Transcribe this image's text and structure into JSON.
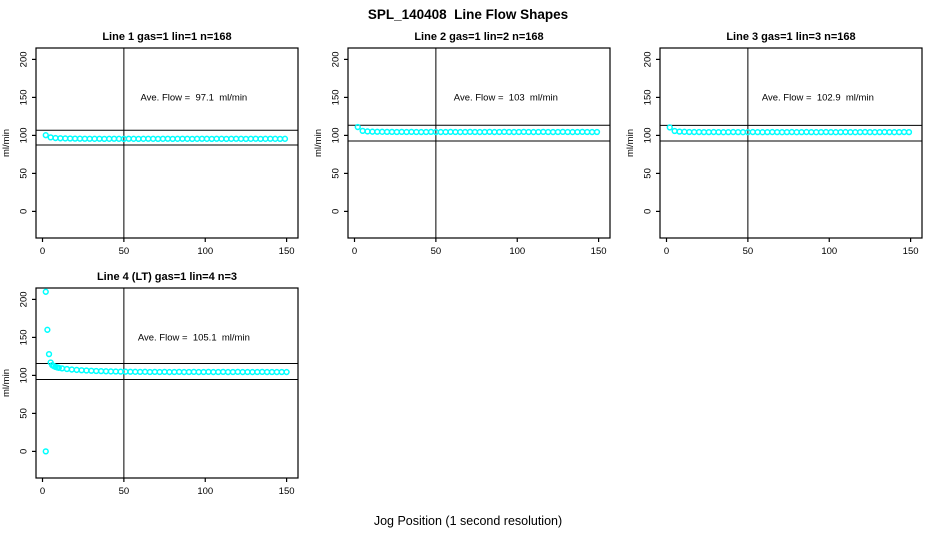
{
  "page_title": "SPL_140408  Line Flow Shapes",
  "x_axis_title": "Jog Position (1 second resolution)",
  "colors": {
    "point": "#00FFFF",
    "axis": "#000000",
    "background": "#FFFFFF"
  },
  "chart_data": [
    {
      "type": "scatter",
      "title": "Line 1 gas=1 lin=1 n=168",
      "annotation": "Ave. Flow =  97.1  ml/min",
      "ave_flow": 97.1,
      "ylabel": "ml/min",
      "xticks": [
        0,
        50,
        100,
        150
      ],
      "yticks": [
        0,
        50,
        100,
        150,
        200
      ],
      "xlim": [
        -4,
        157
      ],
      "ylim": [
        -35,
        215
      ],
      "vline": 50,
      "hlines": [
        106.8,
        87.4
      ],
      "points": [
        [
          2,
          100.3
        ],
        [
          5,
          97.4
        ],
        [
          8,
          96.5
        ],
        [
          11,
          96.2
        ],
        [
          14,
          96.0
        ],
        [
          17,
          95.9
        ],
        [
          20,
          95.8
        ],
        [
          23,
          95.7
        ],
        [
          26,
          95.6
        ],
        [
          29,
          95.6
        ],
        [
          32,
          95.5
        ],
        [
          35,
          95.6
        ],
        [
          38,
          95.4
        ],
        [
          41,
          95.5
        ],
        [
          44,
          95.6
        ],
        [
          47,
          95.5
        ],
        [
          50,
          95.4
        ],
        [
          53,
          95.6
        ],
        [
          56,
          95.5
        ],
        [
          59,
          95.4
        ],
        [
          62,
          95.5
        ],
        [
          65,
          95.6
        ],
        [
          68,
          95.5
        ],
        [
          71,
          95.4
        ],
        [
          74,
          95.5
        ],
        [
          77,
          95.6
        ],
        [
          80,
          95.4
        ],
        [
          83,
          95.5
        ],
        [
          86,
          95.6
        ],
        [
          89,
          95.5
        ],
        [
          92,
          95.4
        ],
        [
          95,
          95.5
        ],
        [
          98,
          95.6
        ],
        [
          101,
          95.5
        ],
        [
          104,
          95.4
        ],
        [
          107,
          95.6
        ],
        [
          110,
          95.5
        ],
        [
          113,
          95.4
        ],
        [
          116,
          95.5
        ],
        [
          119,
          95.6
        ],
        [
          122,
          95.5
        ],
        [
          125,
          95.4
        ],
        [
          128,
          95.5
        ],
        [
          131,
          95.6
        ],
        [
          134,
          95.4
        ],
        [
          137,
          95.5
        ],
        [
          140,
          95.6
        ],
        [
          143,
          95.5
        ],
        [
          146,
          95.4
        ],
        [
          149,
          95.5
        ]
      ]
    },
    {
      "type": "scatter",
      "title": "Line 2 gas=1 lin=2 n=168",
      "annotation": "Ave. Flow =  103  ml/min",
      "ave_flow": 103,
      "ylabel": "ml/min",
      "xticks": [
        0,
        50,
        100,
        150
      ],
      "yticks": [
        0,
        50,
        100,
        150,
        200
      ],
      "xlim": [
        -4,
        157
      ],
      "ylim": [
        -35,
        215
      ],
      "vline": 50,
      "hlines": [
        113.3,
        92.7
      ],
      "points": [
        [
          2,
          111.0
        ],
        [
          5,
          106.0
        ],
        [
          8,
          105.2
        ],
        [
          11,
          104.9
        ],
        [
          14,
          104.8
        ],
        [
          17,
          104.7
        ],
        [
          20,
          104.6
        ],
        [
          23,
          104.6
        ],
        [
          26,
          104.5
        ],
        [
          29,
          104.6
        ],
        [
          32,
          104.5
        ],
        [
          35,
          104.6
        ],
        [
          38,
          104.5
        ],
        [
          41,
          104.4
        ],
        [
          44,
          104.5
        ],
        [
          47,
          104.6
        ],
        [
          50,
          104.5
        ],
        [
          53,
          104.4
        ],
        [
          56,
          104.5
        ],
        [
          59,
          104.6
        ],
        [
          62,
          104.5
        ],
        [
          65,
          104.4
        ],
        [
          68,
          104.5
        ],
        [
          71,
          104.6
        ],
        [
          74,
          104.5
        ],
        [
          77,
          104.4
        ],
        [
          80,
          104.5
        ],
        [
          83,
          104.6
        ],
        [
          86,
          104.4
        ],
        [
          89,
          104.5
        ],
        [
          92,
          104.6
        ],
        [
          95,
          104.5
        ],
        [
          98,
          104.4
        ],
        [
          101,
          104.5
        ],
        [
          104,
          104.6
        ],
        [
          107,
          104.5
        ],
        [
          110,
          104.4
        ],
        [
          113,
          104.5
        ],
        [
          116,
          104.6
        ],
        [
          119,
          104.5
        ],
        [
          122,
          104.4
        ],
        [
          125,
          104.5
        ],
        [
          128,
          104.6
        ],
        [
          131,
          104.5
        ],
        [
          134,
          104.4
        ],
        [
          137,
          104.5
        ],
        [
          140,
          104.6
        ],
        [
          143,
          104.5
        ],
        [
          146,
          104.4
        ],
        [
          149,
          104.5
        ]
      ]
    },
    {
      "type": "scatter",
      "title": "Line 3 gas=1 lin=3 n=168",
      "annotation": "Ave. Flow =  102.9  ml/min",
      "ave_flow": 102.9,
      "ylabel": "ml/min",
      "xticks": [
        0,
        50,
        100,
        150
      ],
      "yticks": [
        0,
        50,
        100,
        150,
        200
      ],
      "xlim": [
        -4,
        157
      ],
      "ylim": [
        -35,
        215
      ],
      "vline": 50,
      "hlines": [
        113.2,
        92.6
      ],
      "points": [
        [
          2,
          110.5
        ],
        [
          5,
          105.8
        ],
        [
          8,
          105.0
        ],
        [
          11,
          104.7
        ],
        [
          14,
          104.5
        ],
        [
          17,
          104.4
        ],
        [
          20,
          104.4
        ],
        [
          23,
          104.3
        ],
        [
          26,
          104.3
        ],
        [
          29,
          104.4
        ],
        [
          32,
          104.3
        ],
        [
          35,
          104.2
        ],
        [
          38,
          104.3
        ],
        [
          41,
          104.4
        ],
        [
          44,
          104.3
        ],
        [
          47,
          104.2
        ],
        [
          50,
          104.3
        ],
        [
          53,
          104.4
        ],
        [
          56,
          104.3
        ],
        [
          59,
          104.2
        ],
        [
          62,
          104.3
        ],
        [
          65,
          104.4
        ],
        [
          68,
          104.3
        ],
        [
          71,
          104.2
        ],
        [
          74,
          104.3
        ],
        [
          77,
          104.4
        ],
        [
          80,
          104.2
        ],
        [
          83,
          104.3
        ],
        [
          86,
          104.4
        ],
        [
          89,
          104.3
        ],
        [
          92,
          104.2
        ],
        [
          95,
          104.3
        ],
        [
          98,
          104.4
        ],
        [
          101,
          104.3
        ],
        [
          104,
          104.2
        ],
        [
          107,
          104.3
        ],
        [
          110,
          104.4
        ],
        [
          113,
          104.3
        ],
        [
          116,
          104.2
        ],
        [
          119,
          104.3
        ],
        [
          122,
          104.4
        ],
        [
          125,
          104.3
        ],
        [
          128,
          104.2
        ],
        [
          131,
          104.3
        ],
        [
          134,
          104.4
        ],
        [
          137,
          104.3
        ],
        [
          140,
          104.2
        ],
        [
          143,
          104.3
        ],
        [
          146,
          104.4
        ],
        [
          149,
          104.3
        ]
      ]
    },
    {
      "type": "scatter",
      "title": "Line 4 (LT) gas=1 lin=4 n=3",
      "annotation": "Ave. Flow =  105.1  ml/min",
      "ave_flow": 105.1,
      "ylabel": "ml/min",
      "xticks": [
        0,
        50,
        100,
        150
      ],
      "yticks": [
        0,
        50,
        100,
        150,
        200
      ],
      "xlim": [
        -4,
        157
      ],
      "ylim": [
        -35,
        215
      ],
      "vline": 50,
      "hlines": [
        115.6,
        94.6
      ],
      "points": [
        [
          2,
          210
        ],
        [
          2,
          0
        ],
        [
          3,
          160
        ],
        [
          4,
          128
        ],
        [
          5,
          117
        ],
        [
          6,
          113.5
        ],
        [
          7,
          112.2
        ],
        [
          8,
          111.2
        ],
        [
          9,
          110.5
        ],
        [
          10,
          110.0
        ],
        [
          12,
          109.2
        ],
        [
          15,
          108.4
        ],
        [
          18,
          107.7
        ],
        [
          21,
          107.2
        ],
        [
          24,
          106.8
        ],
        [
          27,
          106.4
        ],
        [
          30,
          106.1
        ],
        [
          33,
          105.8
        ],
        [
          36,
          105.6
        ],
        [
          39,
          105.4
        ],
        [
          42,
          105.2
        ],
        [
          45,
          105.1
        ],
        [
          48,
          105.0
        ],
        [
          51,
          104.9
        ],
        [
          54,
          104.8
        ],
        [
          57,
          104.7
        ],
        [
          60,
          104.6
        ],
        [
          63,
          104.7
        ],
        [
          66,
          104.5
        ],
        [
          69,
          104.6
        ],
        [
          72,
          104.5
        ],
        [
          75,
          104.6
        ],
        [
          78,
          104.4
        ],
        [
          81,
          104.5
        ],
        [
          84,
          104.6
        ],
        [
          87,
          104.4
        ],
        [
          90,
          104.5
        ],
        [
          93,
          104.6
        ],
        [
          96,
          104.4
        ],
        [
          99,
          104.5
        ],
        [
          102,
          104.6
        ],
        [
          105,
          104.4
        ],
        [
          108,
          104.5
        ],
        [
          111,
          104.6
        ],
        [
          114,
          104.4
        ],
        [
          117,
          104.5
        ],
        [
          120,
          104.6
        ],
        [
          123,
          104.4
        ],
        [
          126,
          104.5
        ],
        [
          129,
          104.4
        ],
        [
          132,
          104.5
        ],
        [
          135,
          104.6
        ],
        [
          138,
          104.4
        ],
        [
          141,
          104.5
        ],
        [
          144,
          104.4
        ],
        [
          147,
          104.5
        ],
        [
          150,
          104.4
        ]
      ]
    }
  ]
}
